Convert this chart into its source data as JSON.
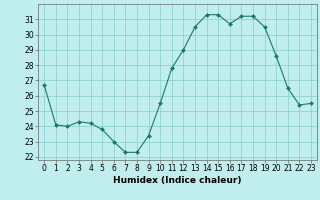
{
  "x": [
    0,
    1,
    2,
    3,
    4,
    5,
    6,
    7,
    8,
    9,
    10,
    11,
    12,
    13,
    14,
    15,
    16,
    17,
    18,
    19,
    20,
    21,
    22,
    23
  ],
  "y": [
    26.7,
    24.1,
    24.0,
    24.3,
    24.2,
    23.8,
    23.0,
    22.3,
    22.3,
    23.4,
    25.5,
    27.8,
    29.0,
    30.5,
    31.3,
    31.3,
    30.7,
    31.2,
    31.2,
    30.5,
    28.6,
    26.5,
    25.4,
    25.5
  ],
  "line_color": "#1a7a6a",
  "marker_color": "#1a7a6a",
  "bg_color": "#c0eeee",
  "grid_color": "#88cccc",
  "xlabel": "Humidex (Indice chaleur)",
  "ylim": [
    21.8,
    32.0
  ],
  "xlim": [
    -0.5,
    23.5
  ],
  "yticks": [
    22,
    23,
    24,
    25,
    26,
    27,
    28,
    29,
    30,
    31
  ],
  "xticks": [
    0,
    1,
    2,
    3,
    4,
    5,
    6,
    7,
    8,
    9,
    10,
    11,
    12,
    13,
    14,
    15,
    16,
    17,
    18,
    19,
    20,
    21,
    22,
    23
  ],
  "tick_fontsize": 5.5,
  "label_fontsize": 6.5
}
